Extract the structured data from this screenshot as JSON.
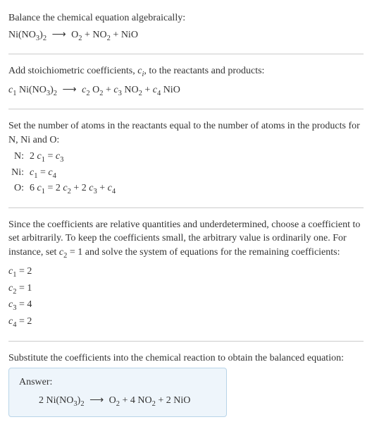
{
  "colors": {
    "background": "#ffffff",
    "text": "#333333",
    "divider": "#cccccc",
    "answer_bg": "#eef5fb",
    "answer_border": "#b8d4e8"
  },
  "typography": {
    "font_family": "Georgia, 'Times New Roman', serif",
    "base_size": 14,
    "sub_scale": 0.75
  },
  "section1": {
    "intro": "Balance the chemical equation algebraically:",
    "lhs_compound": "Ni(NO",
    "lhs_sub1": "3",
    "lhs_close": ")",
    "lhs_sub2": "2",
    "arrow": "⟶",
    "rhs1": "O",
    "rhs1_sub": "2",
    "plus1": " + ",
    "rhs2": "NO",
    "rhs2_sub": "2",
    "plus2": " + ",
    "rhs3": "NiO"
  },
  "section2": {
    "intro_a": "Add stoichiometric coefficients, ",
    "ci": "c",
    "ci_sub": "i",
    "intro_b": ", to the reactants and products:",
    "c1": "c",
    "c1_sub": "1",
    "sp1": " Ni(NO",
    "sp1_sub1": "3",
    "sp1_close": ")",
    "sp1_sub2": "2",
    "arrow": "⟶",
    "c2": "c",
    "c2_sub": "2",
    "sp2": " O",
    "sp2_sub": "2",
    "plus1": " + ",
    "c3": "c",
    "c3_sub": "3",
    "sp3": " NO",
    "sp3_sub": "2",
    "plus2": " + ",
    "c4": "c",
    "c4_sub": "4",
    "sp4": " NiO"
  },
  "section3": {
    "intro": "Set the number of atoms in the reactants equal to the number of atoms in the products for N, Ni and O:",
    "rows": {
      "n": {
        "label": "N:",
        "pre": "2 ",
        "c1": "c",
        "c1_sub": "1",
        "eq": " = ",
        "c3": "c",
        "c3_sub": "3"
      },
      "ni": {
        "label": "Ni:",
        "c1": "c",
        "c1_sub": "1",
        "eq": " = ",
        "c4": "c",
        "c4_sub": "4"
      },
      "o": {
        "label": "O:",
        "pre": "6 ",
        "c1": "c",
        "c1_sub": "1",
        "eq": " = 2 ",
        "c2": "c",
        "c2_sub": "2",
        "plus1": " + 2 ",
        "c3": "c",
        "c3_sub": "3",
        "plus2": " + ",
        "c4": "c",
        "c4_sub": "4"
      }
    }
  },
  "section4": {
    "intro_a": "Since the coefficients are relative quantities and underdetermined, choose a coefficient to set arbitrarily. To keep the coefficients small, the arbitrary value is ordinarily one. For instance, set ",
    "c2": "c",
    "c2_sub": "2",
    "intro_b": " = 1 and solve the system of equations for the remaining coefficients:",
    "lines": {
      "l1_c": "c",
      "l1_sub": "1",
      "l1_val": " = 2",
      "l2_c": "c",
      "l2_sub": "2",
      "l2_val": " = 1",
      "l3_c": "c",
      "l3_sub": "3",
      "l3_val": " = 4",
      "l4_c": "c",
      "l4_sub": "4",
      "l4_val": " = 2"
    }
  },
  "section5": {
    "intro": "Substitute the coefficients into the chemical reaction to obtain the balanced equation:",
    "answer_label": "Answer:",
    "eq": {
      "lhs_coeff": "2 Ni(NO",
      "lhs_sub1": "3",
      "lhs_close": ")",
      "lhs_sub2": "2",
      "arrow": "⟶",
      "rhs1": "O",
      "rhs1_sub": "2",
      "plus1": " + 4 NO",
      "rhs2_sub": "2",
      "plus2": " + 2 NiO"
    }
  }
}
